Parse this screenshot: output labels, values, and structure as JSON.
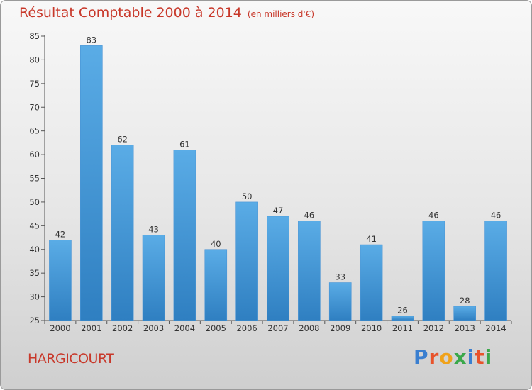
{
  "title": "Résultat Comptable 2000 à 2014",
  "subtitle": "(en milliers d'€)",
  "commune": "HARGICOURT",
  "logo": {
    "text": "Proxiti",
    "colors": [
      "#3a7fd0",
      "#e8532b",
      "#f0a21a",
      "#3aa84a",
      "#3a7fd0",
      "#e8532b",
      "#3aa84a"
    ]
  },
  "colors": {
    "bar_top": "#5aace6",
    "bar_bottom": "#2f7fc1",
    "title": "#c8382a"
  },
  "chart_data": {
    "type": "bar",
    "categories": [
      "2000",
      "2001",
      "2002",
      "2003",
      "2004",
      "2005",
      "2006",
      "2007",
      "2008",
      "2009",
      "2010",
      "2011",
      "2012",
      "2013",
      "2014"
    ],
    "values": [
      42,
      83,
      62,
      43,
      61,
      40,
      50,
      47,
      46,
      33,
      41,
      26,
      46,
      28,
      46
    ],
    "ylim": [
      25,
      85
    ],
    "yticks": [
      25,
      30,
      35,
      40,
      45,
      50,
      55,
      60,
      65,
      70,
      75,
      80,
      85
    ],
    "grid": false
  }
}
